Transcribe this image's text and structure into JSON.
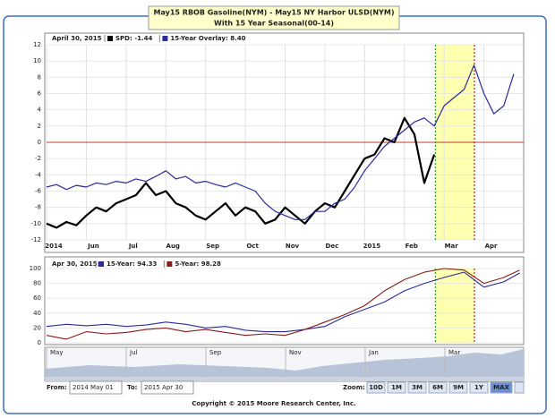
{
  "header": {
    "title_lines": [
      "May15 RBOB Gasoline(NYM) - May15 NY Harbor ULSD(NYM)",
      "With 15 Year Seasonal(00-14)"
    ]
  },
  "chart_data": [
    {
      "type": "line",
      "info_date": "April 30, 2015",
      "x": [
        0,
        0.25,
        0.5,
        0.75,
        1,
        1.25,
        1.5,
        1.75,
        2,
        2.25,
        2.5,
        2.75,
        3,
        3.25,
        3.5,
        3.75,
        4,
        4.25,
        4.5,
        4.75,
        5,
        5.25,
        5.5,
        5.75,
        6,
        6.25,
        6.5,
        6.75,
        7,
        7.25,
        7.5,
        7.75,
        8,
        8.25,
        8.5,
        8.75,
        9,
        9.25,
        9.5,
        9.75,
        10,
        10.25,
        10.5,
        10.75,
        11,
        11.25,
        11.5,
        11.75
      ],
      "series": [
        {
          "name": "SPD: -1.44",
          "color": "#000000",
          "width": 2.2,
          "values": [
            -10,
            -10.5,
            -9.8,
            -10.2,
            -9,
            -8,
            -8.5,
            -7.5,
            -7,
            -6.5,
            -5,
            -6.5,
            -6,
            -7.5,
            -8,
            -9,
            -9.5,
            -8.5,
            -7.5,
            -9,
            -8,
            -8.5,
            -10,
            -9.5,
            -8,
            -9,
            -10,
            -8.5,
            -7.5,
            -8,
            -6,
            -4,
            -2,
            -1.5,
            0.5,
            0,
            3,
            1,
            -5,
            -1.5,
            null,
            null,
            null,
            null,
            null,
            null,
            null,
            null
          ]
        },
        {
          "name": "15-Year Overlay: 8.40",
          "color": "#2b2b9a",
          "width": 1.2,
          "values": [
            -5.5,
            -5.2,
            -5.8,
            -5.3,
            -5.5,
            -5,
            -5.2,
            -4.8,
            -5,
            -4.5,
            -4.8,
            -4.2,
            -3.5,
            -4.5,
            -4.2,
            -5,
            -4.8,
            -5.2,
            -5.5,
            -5,
            -5.5,
            -6,
            -7.5,
            -8.5,
            -9,
            -9.5,
            -9.5,
            -8.5,
            -8.5,
            -7.5,
            -7,
            -5.5,
            -3.5,
            -2,
            -0.5,
            0.5,
            1.5,
            2.5,
            3,
            2,
            4.5,
            5.5,
            6.5,
            9.5,
            6,
            3.5,
            4.5,
            8.4
          ]
        }
      ],
      "xlim": [
        0,
        12
      ],
      "xticks": [
        {
          "value": 0,
          "label": "2014"
        },
        {
          "value": 1,
          "label": "Jun"
        },
        {
          "value": 2,
          "label": "Jul"
        },
        {
          "value": 3,
          "label": "Aug"
        },
        {
          "value": 4,
          "label": "Sep"
        },
        {
          "value": 5,
          "label": "Oct"
        },
        {
          "value": 6,
          "label": "Nov"
        },
        {
          "value": 7,
          "label": "Dec"
        },
        {
          "value": 8,
          "label": "2015"
        },
        {
          "value": 9,
          "label": "Feb"
        },
        {
          "value": 10,
          "label": "Mar"
        },
        {
          "value": 11,
          "label": "Apr"
        }
      ],
      "ylim": [
        -12,
        12
      ],
      "yticks": [
        -12,
        -10,
        -8,
        -6,
        -4,
        -2,
        0,
        2,
        4,
        6,
        8,
        10,
        12
      ],
      "grid": true,
      "zero_line_color": "#c0392b",
      "highlight": {
        "start": 9.78,
        "end": 10.76,
        "fill": "#ffffb0",
        "start_color": "#2a9d2a",
        "end_color": "#d01818"
      }
    },
    {
      "type": "line",
      "info_date": "Apr 30, 2015:",
      "x": [
        0,
        0.5,
        1,
        1.5,
        2,
        2.5,
        3,
        3.5,
        4,
        4.5,
        5,
        5.5,
        6,
        6.5,
        7,
        7.5,
        8,
        8.5,
        9,
        9.5,
        10,
        10.5,
        11,
        11.5,
        11.9
      ],
      "series": [
        {
          "name": "15-Year: 94.33",
          "color": "#2b2b9a",
          "width": 1.1,
          "values": [
            22,
            25,
            23,
            25,
            22,
            24,
            28,
            25,
            20,
            22,
            17,
            15,
            15,
            18,
            22,
            35,
            45,
            55,
            70,
            80,
            88,
            95,
            75,
            82,
            94
          ]
        },
        {
          "name": "5-Year: 98.28",
          "color": "#8b1a1a",
          "width": 1.1,
          "values": [
            10,
            5,
            15,
            12,
            14,
            18,
            20,
            15,
            18,
            14,
            10,
            12,
            10,
            18,
            28,
            38,
            50,
            70,
            85,
            95,
            100,
            98,
            80,
            88,
            98
          ]
        }
      ],
      "xlim": [
        0,
        12
      ],
      "ylim": [
        0,
        100
      ],
      "yticks": [
        0,
        20,
        40,
        60,
        80,
        100
      ],
      "grid": true,
      "highlight": {
        "start": 9.78,
        "end": 10.76,
        "fill": "#ffffb0",
        "start_color": "#2a9d2a",
        "end_color": "#d01818"
      }
    }
  ],
  "navigator": {
    "labels": [
      "May",
      "Jul",
      "Sep",
      "Nov",
      "Jan",
      "Mar"
    ]
  },
  "footer": {
    "from_label": "From:",
    "from_value": "2014 May 01",
    "to_label": "To:",
    "to_value": "2015 Apr 30",
    "zoom_label": "Zoom:",
    "zoom_buttons": [
      "10D",
      "1M",
      "3M",
      "6M",
      "9M",
      "1Y",
      "MAX"
    ],
    "copyright": "Copyright © 2015 Moore Research Center, Inc."
  }
}
